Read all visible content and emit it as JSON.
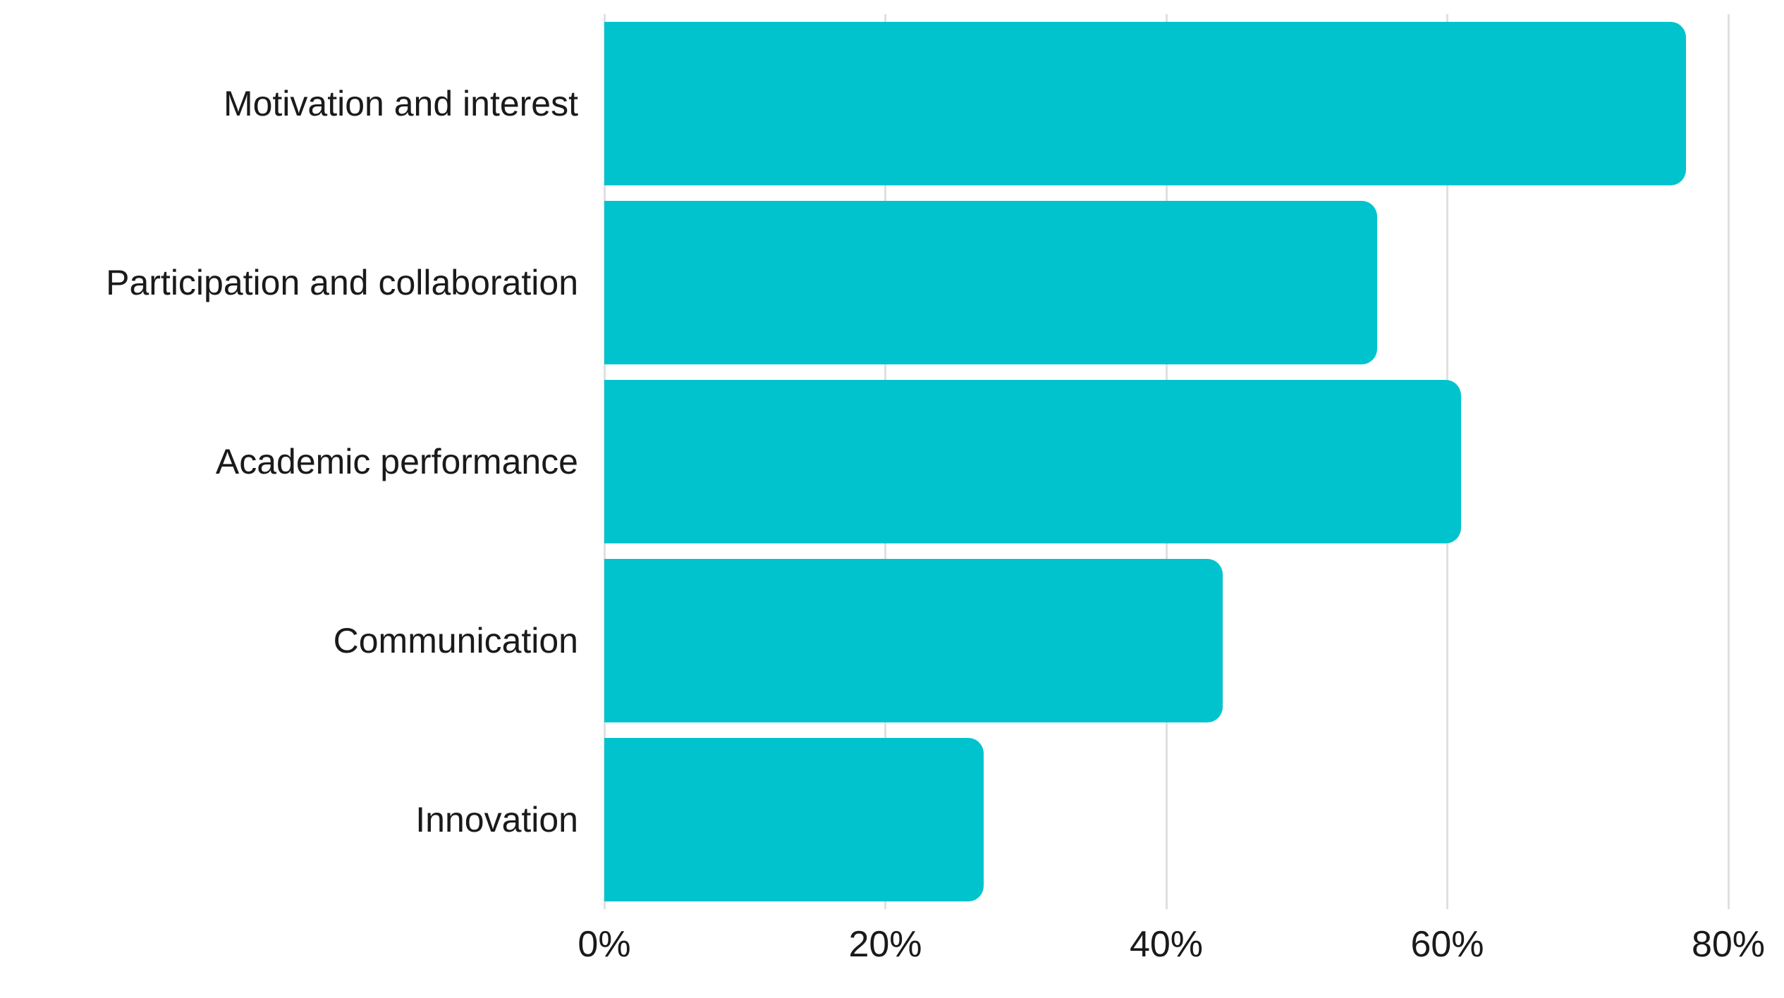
{
  "chart_data": {
    "type": "bar",
    "orientation": "horizontal",
    "title": "",
    "xlabel": "",
    "ylabel": "",
    "categories": [
      "Motivation and interest",
      "Participation and collaboration",
      "Academic performance",
      "Communication",
      "Innovation"
    ],
    "values": [
      77,
      55,
      61,
      44,
      27
    ],
    "unit": "%",
    "xlim": [
      0,
      84
    ],
    "xticks": [
      {
        "value": 0,
        "label": "0%"
      },
      {
        "value": 20,
        "label": "20%"
      },
      {
        "value": 40,
        "label": "40%"
      },
      {
        "value": 60,
        "label": "60%"
      },
      {
        "value": 80,
        "label": "80%"
      }
    ],
    "grid": true,
    "legend": false,
    "colors": {
      "bar": "#00C3CD",
      "gridline": "#E0E0E0",
      "text": "#1A1A1A",
      "background": "#FFFFFF"
    }
  }
}
